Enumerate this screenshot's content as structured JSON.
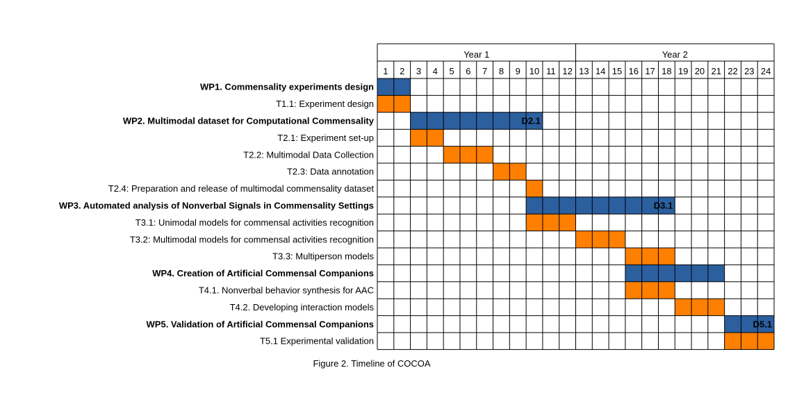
{
  "caption": "Figure 2. Timeline of COCOA",
  "timeline": {
    "years": [
      {
        "label": "Year 1",
        "from": 1,
        "to": 12
      },
      {
        "label": "Year 2",
        "from": 13,
        "to": 24
      }
    ],
    "months": [
      "1",
      "2",
      "3",
      "4",
      "5",
      "6",
      "7",
      "8",
      "9",
      "10",
      "11",
      "12",
      "13",
      "14",
      "15",
      "16",
      "17",
      "18",
      "19",
      "20",
      "21",
      "22",
      "23",
      "24"
    ]
  },
  "colors": {
    "wp": "#2b5f9e",
    "task": "#ff7f00",
    "grid": "#000000"
  },
  "rows": [
    {
      "label": "WP1. Commensality experiments design",
      "bold": true,
      "type": "wp",
      "start": 1,
      "end": 2,
      "deliverable": ""
    },
    {
      "label": "T1.1: Experiment design",
      "bold": false,
      "type": "task",
      "start": 1,
      "end": 2,
      "deliverable": ""
    },
    {
      "label": "WP2. Multimodal dataset for Computational Commensality",
      "bold": true,
      "type": "wp",
      "start": 3,
      "end": 10,
      "deliverable": "D2.1"
    },
    {
      "label": "T2.1: Experiment set-up",
      "bold": false,
      "type": "task",
      "start": 3,
      "end": 4,
      "deliverable": ""
    },
    {
      "label": "T2.2: Multimodal Data Collection",
      "bold": false,
      "type": "task",
      "start": 5,
      "end": 7,
      "deliverable": ""
    },
    {
      "label": "T2.3: Data annotation",
      "bold": false,
      "type": "task",
      "start": 8,
      "end": 9,
      "deliverable": ""
    },
    {
      "label": "T2.4: Preparation and release of multimodal commensality dataset",
      "bold": false,
      "type": "task",
      "start": 10,
      "end": 10,
      "deliverable": ""
    },
    {
      "label": "WP3. Automated analysis of Nonverbal Signals in Commensality Settings",
      "bold": true,
      "type": "wp",
      "start": 10,
      "end": 18,
      "deliverable": "D3.1"
    },
    {
      "label": "T3.1: Unimodal models for commensal activities recognition",
      "bold": false,
      "type": "task",
      "start": 10,
      "end": 12,
      "deliverable": ""
    },
    {
      "label": "T3.2: Multimodal models for commensal activities recognition",
      "bold": false,
      "type": "task",
      "start": 13,
      "end": 15,
      "deliverable": ""
    },
    {
      "label": "T3.3: Multiperson models",
      "bold": false,
      "type": "task",
      "start": 16,
      "end": 18,
      "deliverable": ""
    },
    {
      "label": "WP4. Creation of Artificial Commensal Companions",
      "bold": true,
      "type": "wp",
      "start": 16,
      "end": 21,
      "deliverable": ""
    },
    {
      "label": "T4.1. Nonverbal behavior synthesis for AAC",
      "bold": false,
      "type": "task",
      "start": 16,
      "end": 18,
      "deliverable": ""
    },
    {
      "label": "T4.2. Developing interaction models",
      "bold": false,
      "type": "task",
      "start": 19,
      "end": 21,
      "deliverable": ""
    },
    {
      "label": "WP5. Validation of Artificial Commensal Companions",
      "bold": true,
      "type": "wp",
      "start": 22,
      "end": 24,
      "deliverable": "D5.1"
    },
    {
      "label": "T5.1 Experimental validation",
      "bold": false,
      "type": "task",
      "start": 22,
      "end": 24,
      "deliverable": ""
    }
  ]
}
